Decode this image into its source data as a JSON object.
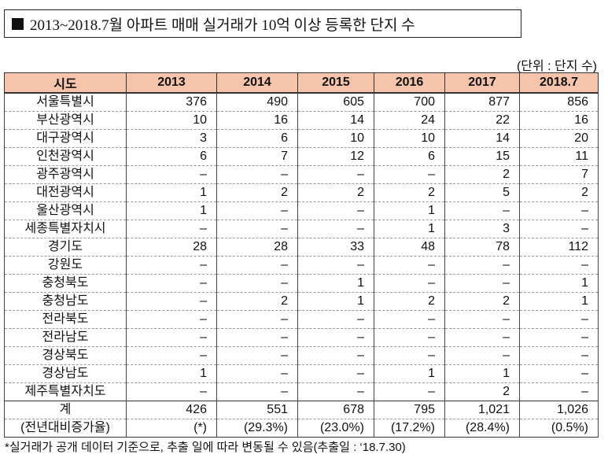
{
  "header": {
    "title": "2013~2018.7월 아파트 매매 실거래가 10억 이상 등록한 단지 수",
    "unit": "(단위 : 단지 수)"
  },
  "table": {
    "columns": [
      "시도",
      "2013",
      "2014",
      "2015",
      "2016",
      "2017",
      "2018.7"
    ],
    "rows": [
      [
        "서울특별시",
        "376",
        "490",
        "605",
        "700",
        "877",
        "856"
      ],
      [
        "부산광역시",
        "10",
        "16",
        "14",
        "24",
        "22",
        "16"
      ],
      [
        "대구광역시",
        "3",
        "6",
        "10",
        "10",
        "14",
        "20"
      ],
      [
        "인천광역시",
        "6",
        "7",
        "12",
        "6",
        "15",
        "11"
      ],
      [
        "광주광역시",
        "–",
        "–",
        "–",
        "–",
        "2",
        "7"
      ],
      [
        "대전광역시",
        "1",
        "2",
        "2",
        "2",
        "5",
        "2"
      ],
      [
        "울산광역시",
        "1",
        "–",
        "–",
        "1",
        "–",
        "–"
      ],
      [
        "세종특별자치시",
        "–",
        "–",
        "–",
        "1",
        "3",
        "–"
      ],
      [
        "경기도",
        "28",
        "28",
        "33",
        "48",
        "78",
        "112"
      ],
      [
        "강원도",
        "–",
        "–",
        "–",
        "–",
        "–",
        "–"
      ],
      [
        "충청북도",
        "–",
        "–",
        "1",
        "–",
        "–",
        "1"
      ],
      [
        "충청남도",
        "–",
        "2",
        "1",
        "2",
        "2",
        "1"
      ],
      [
        "전라북도",
        "–",
        "–",
        "–",
        "–",
        "–",
        "–"
      ],
      [
        "전라남도",
        "–",
        "–",
        "–",
        "–",
        "–",
        "–"
      ],
      [
        "경상북도",
        "–",
        "–",
        "–",
        "–",
        "–",
        "–"
      ],
      [
        "경상남도",
        "1",
        "–",
        "–",
        "1",
        "1",
        "–"
      ],
      [
        "제주특별자치도",
        "–",
        "–",
        "–",
        "–",
        "2",
        "–"
      ],
      [
        "계",
        "426",
        "551",
        "678",
        "795",
        "1,021",
        "1,026"
      ],
      [
        "(전년대비증가율)",
        "(*)",
        "(29.3%)",
        "(23.0%)",
        "(17.2%)",
        "(28.4%)",
        "(0.5%)"
      ]
    ]
  },
  "footnote": "*실거래가 공개 데이터 기준으로, 추출 일에 따라 변동될 수 있음(추출일 : ‘18.7.30)"
}
